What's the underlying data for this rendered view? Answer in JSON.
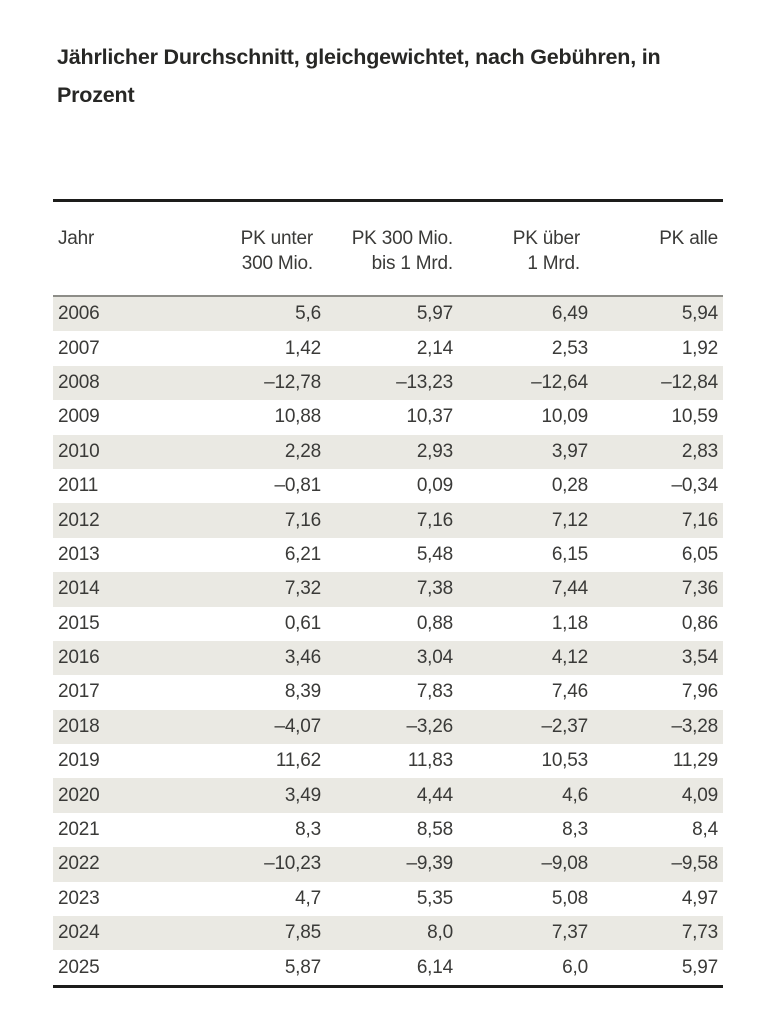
{
  "title": {
    "lines": [
      "Jährlicher Durchschnitt, gleichgewichtet, nach Gebühren, in",
      "Prozent"
    ],
    "full_text": "Jährlicher Durchschnitt, gleichgewichtet, nach Gebühren, in Prozent"
  },
  "table": {
    "headers": [
      {
        "lines": [
          "Jahr"
        ]
      },
      {
        "lines": [
          "PK unter",
          "300 Mio."
        ]
      },
      {
        "lines": [
          "PK 300 Mio.",
          "bis 1 Mrd."
        ]
      },
      {
        "lines": [
          "PK über",
          "1 Mrd."
        ]
      },
      {
        "lines": [
          "PK alle"
        ]
      }
    ],
    "rows": [
      {
        "year": "2006",
        "values": [
          "5,6",
          "5,97",
          "6,49",
          "5,94"
        ]
      },
      {
        "year": "2007",
        "values": [
          "1,42",
          "2,14",
          "2,53",
          "1,92"
        ]
      },
      {
        "year": "2008",
        "values": [
          "–12,78",
          "–13,23",
          "–12,64",
          "–12,84"
        ]
      },
      {
        "year": "2009",
        "values": [
          "10,88",
          "10,37",
          "10,09",
          "10,59"
        ]
      },
      {
        "year": "2010",
        "values": [
          "2,28",
          "2,93",
          "3,97",
          "2,83"
        ]
      },
      {
        "year": "2011",
        "values": [
          "–0,81",
          "0,09",
          "0,28",
          "–0,34"
        ]
      },
      {
        "year": "2012",
        "values": [
          "7,16",
          "7,16",
          "7,12",
          "7,16"
        ]
      },
      {
        "year": "2013",
        "values": [
          "6,21",
          "5,48",
          "6,15",
          "6,05"
        ]
      },
      {
        "year": "2014",
        "values": [
          "7,32",
          "7,38",
          "7,44",
          "7,36"
        ]
      },
      {
        "year": "2015",
        "values": [
          "0,61",
          "0,88",
          "1,18",
          "0,86"
        ]
      },
      {
        "year": "2016",
        "values": [
          "3,46",
          "3,04",
          "4,12",
          "3,54"
        ]
      },
      {
        "year": "2017",
        "values": [
          "8,39",
          "7,83",
          "7,46",
          "7,96"
        ]
      },
      {
        "year": "2018",
        "values": [
          "–4,07",
          "–3,26",
          "–2,37",
          "–3,28"
        ]
      },
      {
        "year": "2019",
        "values": [
          "11,62",
          "11,83",
          "10,53",
          "11,29"
        ]
      },
      {
        "year": "2020",
        "values": [
          "3,49",
          "4,44",
          "4,6",
          "4,09"
        ]
      },
      {
        "year": "2021",
        "values": [
          "8,3",
          "8,58",
          "8,3",
          "8,4"
        ]
      },
      {
        "year": "2022",
        "values": [
          "–10,23",
          "–9,39",
          "–9,08",
          "–9,58"
        ]
      },
      {
        "year": "2023",
        "values": [
          "4,7",
          "5,35",
          "5,08",
          "4,97"
        ]
      },
      {
        "year": "2024",
        "values": [
          "7,85",
          "8,0",
          "7,37",
          "7,73"
        ]
      },
      {
        "year": "2025",
        "values": [
          "5,87",
          "6,14",
          "6,0",
          "5,97"
        ]
      }
    ]
  },
  "colors": {
    "row_shade": "#eae9e3",
    "rule_dark": "#1d1d1b",
    "rule_gray": "#8d8d88",
    "text": "#3a3a38",
    "title_text": "#272725",
    "background": "#ffffff"
  }
}
